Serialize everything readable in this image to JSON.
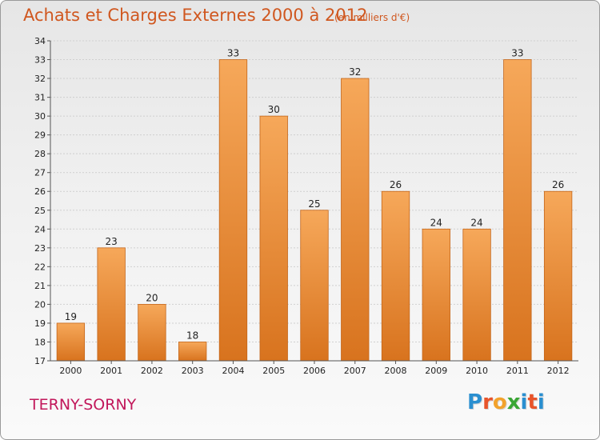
{
  "header": {
    "title": "Achats et Charges Externes 2000 à 2012",
    "unit_note": "(en milliers d'€)"
  },
  "footer": {
    "place": "TERNY-SORNY",
    "logo_letters": [
      "P",
      "r",
      "o",
      "x",
      "i",
      "t",
      "i"
    ],
    "logo_colors": [
      "#2a8fd0",
      "#e8542a",
      "#f2a22c",
      "#3aa635",
      "#2a8fd0",
      "#e8542a",
      "#2a8fd0"
    ]
  },
  "colors": {
    "bar_top": "#f6a85a",
    "bar_bottom": "#d8731e",
    "bar_edge": "#c4661a",
    "accent": "#d0571f"
  },
  "chart_data": {
    "type": "bar",
    "categories": [
      "2000",
      "2001",
      "2002",
      "2003",
      "2004",
      "2005",
      "2006",
      "2007",
      "2008",
      "2009",
      "2010",
      "2011",
      "2012"
    ],
    "values": [
      19,
      23,
      20,
      18,
      33,
      30,
      25,
      32,
      26,
      24,
      24,
      33,
      26
    ],
    "data_labels": [
      "19",
      "23",
      "20",
      "18",
      "33",
      "30",
      "25",
      "32",
      "26",
      "24",
      "24",
      "33",
      "26"
    ],
    "ylim": [
      17,
      34
    ],
    "yticks": [
      "17",
      "18",
      "19",
      "20",
      "21",
      "22",
      "23",
      "24",
      "25",
      "26",
      "27",
      "28",
      "29",
      "30",
      "31",
      "32",
      "33",
      "34"
    ],
    "grid": true,
    "legend": "none"
  }
}
